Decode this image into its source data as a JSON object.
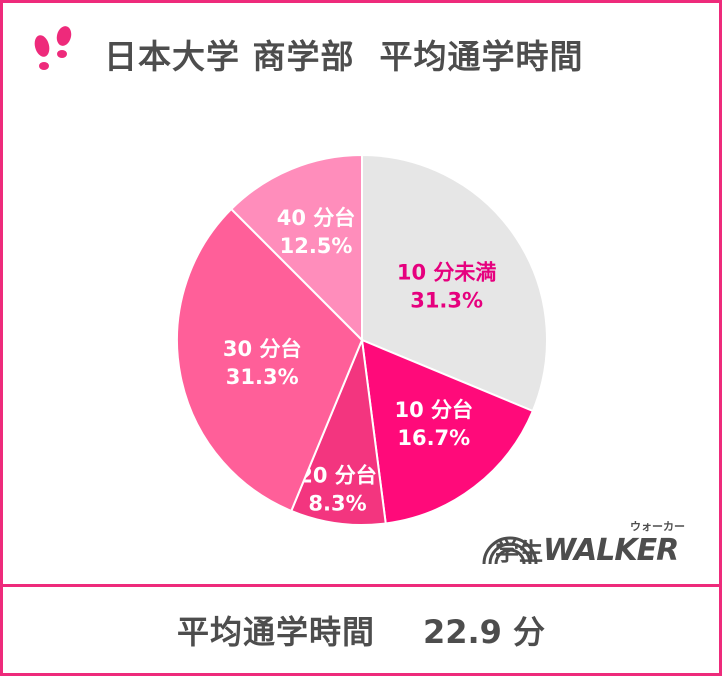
{
  "title": "日本大学 商学部  平均通学時間",
  "footer": {
    "label": "平均通学時間",
    "value": "22.9 分"
  },
  "logo": {
    "jp": "学生",
    "en": "WALKER",
    "ruby": "ウォーカー"
  },
  "colors": {
    "accent": "#ee2a7b",
    "text": "#4d4d4d"
  },
  "chart_data": {
    "type": "pie",
    "slices": [
      {
        "label": "10 分未満",
        "percent_text": "31.3%",
        "value": 31.3,
        "color": "#e6e6e6",
        "text_color": "#e6007e"
      },
      {
        "label": "10 分台",
        "percent_text": "16.7%",
        "value": 16.7,
        "color": "#ff0a7a",
        "text_color": "#ffffff"
      },
      {
        "label": "20 分台",
        "percent_text": "8.3%",
        "value": 8.3,
        "color": "#f3357f",
        "text_color": "#ffffff"
      },
      {
        "label": "30 分台",
        "percent_text": "31.3%",
        "value": 31.3,
        "color": "#ff5f99",
        "text_color": "#ffffff"
      },
      {
        "label": "40 分台",
        "percent_text": "12.5%",
        "value": 12.5,
        "color": "#ff8dbb",
        "text_color": "#ffffff"
      }
    ]
  }
}
